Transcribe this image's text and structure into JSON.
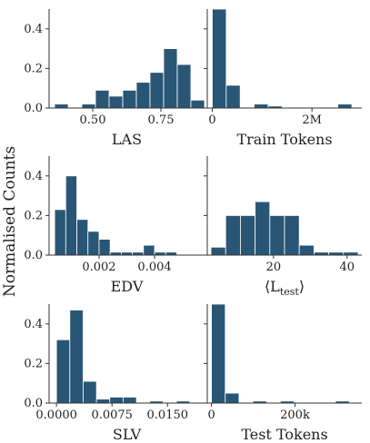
{
  "figure": {
    "ylabel": "Normalised Counts",
    "bar_color": "#2a5675"
  },
  "chart_data": [
    {
      "type": "histogram",
      "panel": "las",
      "xlabel": "LAS",
      "xlim": [
        0.34,
        0.91
      ],
      "ylim": [
        0,
        0.5
      ],
      "xticks": [
        0.5,
        0.75
      ],
      "xtick_labels": [
        "0.50",
        "0.75"
      ],
      "yticks": [
        0,
        0.2,
        0.4
      ],
      "ytick_labels": [
        "0.0",
        "0.2",
        "0.4"
      ],
      "bins": [
        [
          0.36,
          0.41
        ],
        [
          0.41,
          0.46
        ],
        [
          0.46,
          0.51
        ],
        [
          0.51,
          0.56
        ],
        [
          0.56,
          0.61
        ],
        [
          0.61,
          0.66
        ],
        [
          0.66,
          0.71
        ],
        [
          0.71,
          0.76
        ],
        [
          0.76,
          0.81
        ],
        [
          0.81,
          0.86
        ],
        [
          0.86,
          0.91
        ]
      ],
      "values": [
        0.02,
        0,
        0.02,
        0.09,
        0.06,
        0.09,
        0.13,
        0.18,
        0.3,
        0.22,
        0.04
      ]
    },
    {
      "type": "histogram",
      "panel": "train-tokens",
      "xlabel": "Train Tokens",
      "xlim": [
        -100000,
        3000000
      ],
      "ylim": [
        0,
        0.5
      ],
      "xticks": [
        0,
        2000000
      ],
      "xtick_labels": [
        "0",
        "2M"
      ],
      "yticks": [
        0,
        0.2,
        0.4
      ],
      "ytick_labels": [
        "",
        "",
        ""
      ],
      "bins": [
        [
          0,
          280000
        ],
        [
          280000,
          560000
        ],
        [
          560000,
          840000
        ],
        [
          840000,
          1120000
        ],
        [
          1120000,
          1400000
        ],
        [
          1400000,
          1680000
        ],
        [
          1680000,
          1960000
        ],
        [
          1960000,
          2240000
        ],
        [
          2240000,
          2520000
        ],
        [
          2520000,
          2800000
        ]
      ],
      "values": [
        0.5,
        0.115,
        0,
        0.02,
        0.01,
        0,
        0,
        0,
        0,
        0.02
      ]
    },
    {
      "type": "histogram",
      "panel": "edv",
      "xlabel": "EDV",
      "xlim": [
        0.0002,
        0.0058
      ],
      "ylim": [
        0,
        0.5
      ],
      "xticks": [
        0.002,
        0.004
      ],
      "xtick_labels": [
        "0.002",
        "0.004"
      ],
      "yticks": [
        0,
        0.2,
        0.4
      ],
      "ytick_labels": [
        "0.0",
        "0.2",
        "0.4"
      ],
      "bins": [
        [
          0.0004,
          0.0008
        ],
        [
          0.0008,
          0.0012
        ],
        [
          0.0012,
          0.0016
        ],
        [
          0.0016,
          0.002
        ],
        [
          0.002,
          0.0024
        ],
        [
          0.0024,
          0.0028
        ],
        [
          0.0028,
          0.0032
        ],
        [
          0.0032,
          0.0036
        ],
        [
          0.0036,
          0.004
        ],
        [
          0.004,
          0.0044
        ],
        [
          0.0044,
          0.0048
        ]
      ],
      "values": [
        0.23,
        0.4,
        0.18,
        0.12,
        0.08,
        0.015,
        0.015,
        0.015,
        0.05,
        0.015,
        0.015
      ]
    },
    {
      "type": "histogram",
      "panel": "l-test",
      "xlabel": "⟨L",
      "xlabel_sub": "test",
      "xlabel_suffix": "⟩",
      "xlim": [
        2,
        44
      ],
      "ylim": [
        0,
        0.5
      ],
      "xticks": [
        20,
        40
      ],
      "xtick_labels": [
        "20",
        "40"
      ],
      "yticks": [
        0,
        0.2,
        0.4
      ],
      "ytick_labels": [
        "",
        "",
        ""
      ],
      "bins": [
        [
          3,
          7
        ],
        [
          7,
          11
        ],
        [
          11,
          15
        ],
        [
          15,
          19
        ],
        [
          19,
          23
        ],
        [
          23,
          27
        ],
        [
          27,
          31
        ],
        [
          31,
          35
        ],
        [
          35,
          39
        ],
        [
          39,
          43
        ]
      ],
      "values": [
        0.04,
        0.2,
        0.2,
        0.27,
        0.2,
        0.2,
        0.05,
        0.015,
        0.015,
        0.015
      ]
    },
    {
      "type": "histogram",
      "panel": "slv",
      "xlabel": "SLV",
      "xlim": [
        -0.001,
        0.02
      ],
      "ylim": [
        0,
        0.5
      ],
      "xticks": [
        0,
        0.0075,
        0.015
      ],
      "xtick_labels": [
        "0.0000",
        "0.0075",
        "0.0150"
      ],
      "yticks": [
        0,
        0.2,
        0.4
      ],
      "ytick_labels": [
        "0.0",
        "0.2",
        "0.4"
      ],
      "bins": [
        [
          0,
          0.0018
        ],
        [
          0.0018,
          0.0036
        ],
        [
          0.0036,
          0.0054
        ],
        [
          0.0054,
          0.0072
        ],
        [
          0.0072,
          0.009
        ],
        [
          0.009,
          0.0108
        ],
        [
          0.0108,
          0.0126
        ],
        [
          0.0126,
          0.0144
        ],
        [
          0.0144,
          0.0162
        ],
        [
          0.0162,
          0.018
        ]
      ],
      "values": [
        0.32,
        0.47,
        0.11,
        0.02,
        0.03,
        0.03,
        0,
        0.01,
        0,
        0.01
      ]
    },
    {
      "type": "histogram",
      "panel": "test-tokens",
      "xlabel": "Test Tokens",
      "xlim": [
        -10000,
        360000
      ],
      "ylim": [
        0,
        0.5
      ],
      "xticks": [
        0,
        200000
      ],
      "xtick_labels": [
        "0",
        "200k"
      ],
      "yticks": [
        0,
        0.2,
        0.4
      ],
      "ytick_labels": [
        "",
        "",
        ""
      ],
      "bins": [
        [
          0,
          33000
        ],
        [
          33000,
          66000
        ],
        [
          66000,
          99000
        ],
        [
          99000,
          132000
        ],
        [
          132000,
          165000
        ],
        [
          165000,
          198000
        ],
        [
          198000,
          231000
        ],
        [
          231000,
          264000
        ],
        [
          264000,
          297000
        ],
        [
          297000,
          330000
        ]
      ],
      "values": [
        0.5,
        0.05,
        0,
        0.01,
        0,
        0.01,
        0,
        0,
        0,
        0.01
      ]
    }
  ]
}
